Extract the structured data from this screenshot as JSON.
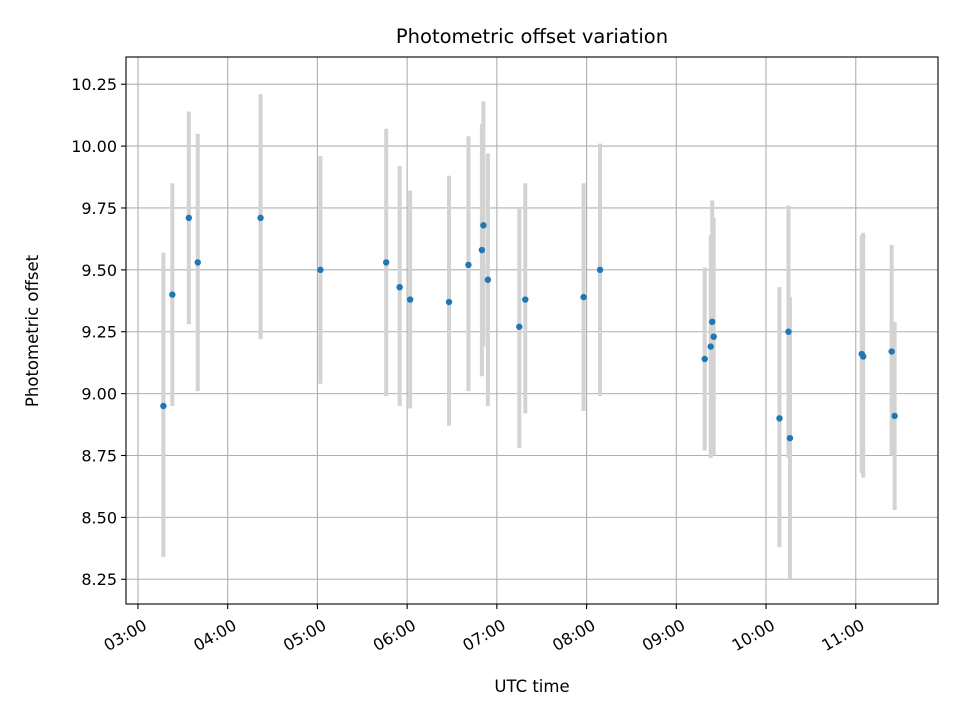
{
  "chart_data": {
    "type": "scatter",
    "title": "Photometric offset variation",
    "xlabel": "UTC time",
    "ylabel": "Photometric offset",
    "xlim": [
      "02:52",
      "11:55"
    ],
    "ylim": [
      8.15,
      10.36
    ],
    "grid": true,
    "x_ticks": [
      "03:00",
      "04:00",
      "05:00",
      "06:00",
      "07:00",
      "08:00",
      "09:00",
      "10:00",
      "11:00"
    ],
    "y_ticks": [
      "8.25",
      "8.50",
      "8.75",
      "9.00",
      "9.25",
      "9.50",
      "9.75",
      "10.00",
      "10.25"
    ],
    "x_unit": "UTC time (HH:MM)",
    "points": [
      {
        "x": "03:17",
        "y": 8.95,
        "ylow": 8.34,
        "yhigh": 9.57
      },
      {
        "x": "03:23",
        "y": 9.4,
        "ylow": 8.95,
        "yhigh": 9.85
      },
      {
        "x": "03:34",
        "y": 9.71,
        "ylow": 9.28,
        "yhigh": 10.14
      },
      {
        "x": "03:40",
        "y": 9.53,
        "ylow": 9.01,
        "yhigh": 10.05
      },
      {
        "x": "04:22",
        "y": 9.71,
        "ylow": 9.22,
        "yhigh": 10.21
      },
      {
        "x": "05:02",
        "y": 9.5,
        "ylow": 9.04,
        "yhigh": 9.96
      },
      {
        "x": "05:46",
        "y": 9.53,
        "ylow": 8.99,
        "yhigh": 10.07
      },
      {
        "x": "05:55",
        "y": 9.43,
        "ylow": 8.95,
        "yhigh": 9.92
      },
      {
        "x": "06:02",
        "y": 9.38,
        "ylow": 8.94,
        "yhigh": 9.82
      },
      {
        "x": "06:28",
        "y": 9.37,
        "ylow": 8.87,
        "yhigh": 9.88
      },
      {
        "x": "06:41",
        "y": 9.52,
        "ylow": 9.01,
        "yhigh": 10.04
      },
      {
        "x": "06:50",
        "y": 9.58,
        "ylow": 9.07,
        "yhigh": 10.09
      },
      {
        "x": "06:51",
        "y": 9.68,
        "ylow": 9.19,
        "yhigh": 10.18
      },
      {
        "x": "06:54",
        "y": 9.46,
        "ylow": 8.95,
        "yhigh": 9.97
      },
      {
        "x": "07:15",
        "y": 9.27,
        "ylow": 8.78,
        "yhigh": 9.75
      },
      {
        "x": "07:19",
        "y": 9.38,
        "ylow": 8.92,
        "yhigh": 9.85
      },
      {
        "x": "07:58",
        "y": 9.39,
        "ylow": 8.93,
        "yhigh": 9.85
      },
      {
        "x": "08:09",
        "y": 9.5,
        "ylow": 8.99,
        "yhigh": 10.01
      },
      {
        "x": "09:19",
        "y": 9.14,
        "ylow": 8.77,
        "yhigh": 9.51
      },
      {
        "x": "09:23",
        "y": 9.19,
        "ylow": 8.74,
        "yhigh": 9.64
      },
      {
        "x": "09:24",
        "y": 9.29,
        "ylow": 8.8,
        "yhigh": 9.78
      },
      {
        "x": "09:25",
        "y": 9.23,
        "ylow": 8.75,
        "yhigh": 9.71
      },
      {
        "x": "10:09",
        "y": 8.9,
        "ylow": 8.38,
        "yhigh": 9.43
      },
      {
        "x": "10:15",
        "y": 9.25,
        "ylow": 8.74,
        "yhigh": 9.76
      },
      {
        "x": "10:16",
        "y": 8.82,
        "ylow": 8.25,
        "yhigh": 9.39
      },
      {
        "x": "11:04",
        "y": 9.16,
        "ylow": 8.68,
        "yhigh": 9.64
      },
      {
        "x": "11:05",
        "y": 9.15,
        "ylow": 8.66,
        "yhigh": 9.65
      },
      {
        "x": "11:24",
        "y": 9.17,
        "ylow": 8.75,
        "yhigh": 9.6
      },
      {
        "x": "11:26",
        "y": 8.91,
        "ylow": 8.53,
        "yhigh": 9.29
      }
    ],
    "colors": {
      "point": "#1f77b4",
      "error_bar": "#d3d3d3",
      "grid": "#b0b0b0",
      "axes": "#000000"
    }
  }
}
